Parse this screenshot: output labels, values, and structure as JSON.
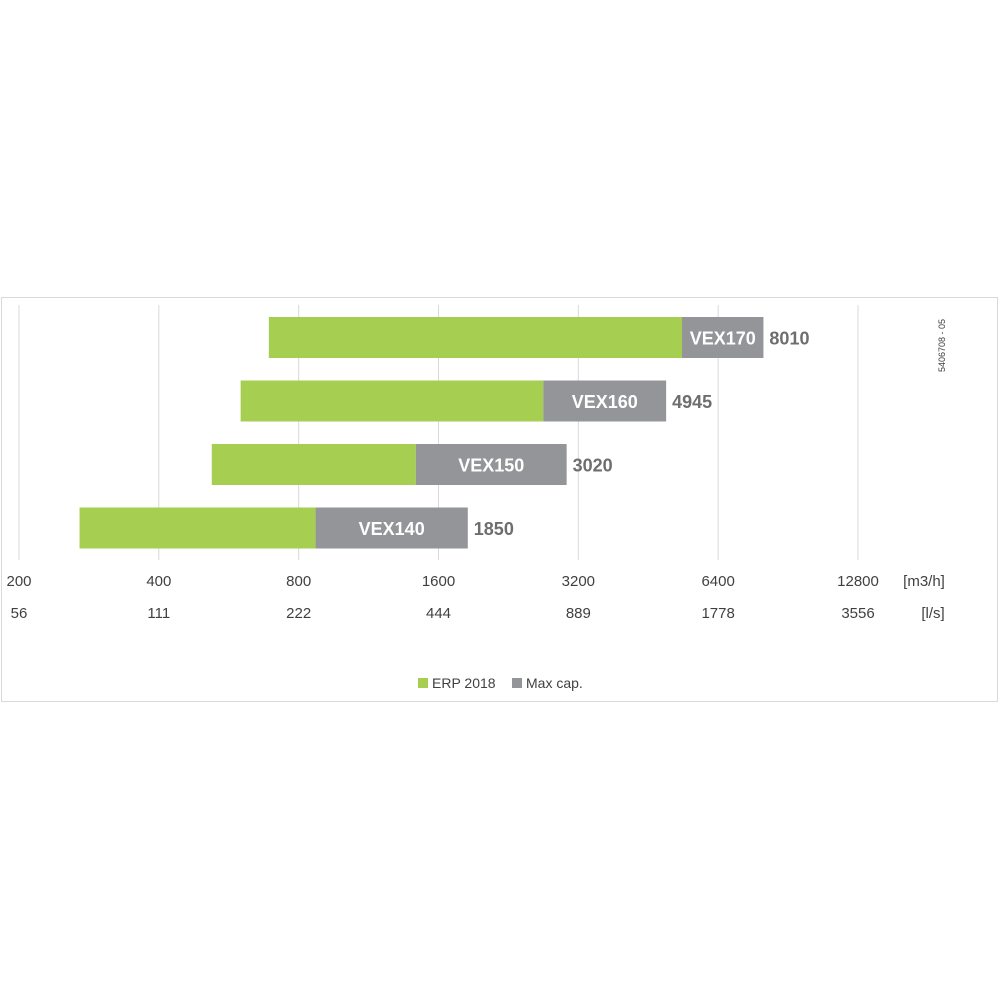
{
  "chart_data": {
    "type": "bar",
    "orientation": "horizontal",
    "stacked": true,
    "x_scale": "log2",
    "xlim": [
      200,
      12800
    ],
    "x_ticks_m3h": [
      "200",
      "400",
      "800",
      "1600",
      "3200",
      "6400",
      "12800"
    ],
    "x_ticks_ls": [
      "56",
      "111",
      "222",
      "444",
      "889",
      "1778",
      "3556"
    ],
    "x_unit_primary": "[m3/h]",
    "x_unit_secondary": "[l/s]",
    "grid": "vertical",
    "legend_position": "bottom",
    "doc_id": "5406708 - 05",
    "colors": {
      "erp": "#a6ce51",
      "max": "#939598"
    },
    "legend": [
      {
        "key": "erp",
        "label": "ERP 2018"
      },
      {
        "key": "max",
        "label": "Max cap."
      }
    ],
    "categories": [
      {
        "model": "VEX170",
        "erp_range": [
          690,
          5350
        ],
        "max_value": 8010,
        "max_label": "8010"
      },
      {
        "model": "VEX160",
        "erp_range": [
          600,
          2690
        ],
        "max_value": 4945,
        "max_label": "4945"
      },
      {
        "model": "VEX150",
        "erp_range": [
          520,
          1430
        ],
        "max_value": 3020,
        "max_label": "3020"
      },
      {
        "model": "VEX140",
        "erp_range": [
          270,
          870
        ],
        "max_value": 1850,
        "max_label": "1850"
      }
    ]
  }
}
